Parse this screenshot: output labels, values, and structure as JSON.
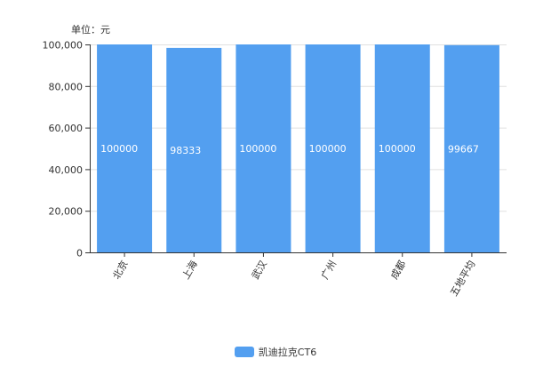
{
  "chart_data": {
    "type": "bar",
    "unit_label": "单位：元",
    "categories": [
      "北京",
      "上海",
      "武汉",
      "广州",
      "成都",
      "五地平均"
    ],
    "series": [
      {
        "name": "凯迪拉克CT6",
        "values": [
          100000,
          98333,
          100000,
          100000,
          100000,
          99667
        ],
        "color": "#539ff0"
      }
    ],
    "data_labels": [
      "100000",
      "98333",
      "100000",
      "100000",
      "100000",
      "99667"
    ],
    "ylim": [
      0,
      100000
    ],
    "yticks": [
      0,
      20000,
      40000,
      60000,
      80000,
      100000
    ],
    "ytick_labels": [
      "0",
      "20,000",
      "40,000",
      "60,000",
      "80,000",
      "100,000"
    ],
    "grid": true,
    "legend_position": "bottom"
  }
}
